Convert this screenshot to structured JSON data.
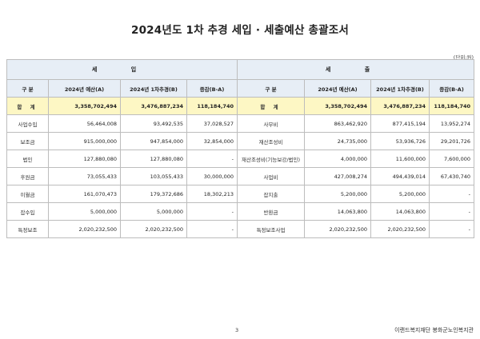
{
  "title": "2024년도 1차 추경 세입 · 세출예산 총괄조서",
  "unit": "(단위:원)",
  "revenue_header": "세 입",
  "expense_header": "세 출",
  "columns": {
    "category": "구 분",
    "budget_2024": "2024년 예산(A)",
    "supp_2024": "2024년 1차추경(B)",
    "change": "증감(B-A)"
  },
  "total": {
    "label": "합 계",
    "rev_budget": "3,358,702,494",
    "rev_supp": "3,476,887,234",
    "rev_change": "118,184,740",
    "exp_budget": "3,358,702,494",
    "exp_supp": "3,476,887,234",
    "exp_change": "118,184,740"
  },
  "rows": [
    {
      "rev_label": "사업수입",
      "rev_budget": "56,464,008",
      "rev_supp": "93,492,535",
      "rev_change": "37,028,527",
      "exp_label": "사무비",
      "exp_budget": "863,462,920",
      "exp_supp": "877,415,194",
      "exp_change": "13,952,274"
    },
    {
      "rev_label": "보조금",
      "rev_budget": "915,000,000",
      "rev_supp": "947,854,000",
      "rev_change": "32,854,000",
      "exp_label": "재산조성비",
      "exp_budget": "24,735,000",
      "exp_supp": "53,936,726",
      "exp_change": "29,201,726"
    },
    {
      "rev_label": "법인",
      "rev_budget": "127,880,080",
      "rev_supp": "127,880,080",
      "rev_change": "-",
      "exp_label": "재산조성비(기능보강/법인)",
      "exp_budget": "4,000,000",
      "exp_supp": "11,600,000",
      "exp_change": "7,600,000"
    },
    {
      "rev_label": "후원금",
      "rev_budget": "73,055,433",
      "rev_supp": "103,055,433",
      "rev_change": "30,000,000",
      "exp_label": "사업비",
      "exp_budget": "427,008,274",
      "exp_supp": "494,439,014",
      "exp_change": "67,430,740"
    },
    {
      "rev_label": "이월금",
      "rev_budget": "161,070,473",
      "rev_supp": "179,372,686",
      "rev_change": "18,302,213",
      "exp_label": "잡지출",
      "exp_budget": "5,200,000",
      "exp_supp": "5,200,000",
      "exp_change": "-"
    },
    {
      "rev_label": "잡수입",
      "rev_budget": "5,000,000",
      "rev_supp": "5,000,000",
      "rev_change": "-",
      "exp_label": "반환금",
      "exp_budget": "14,063,800",
      "exp_supp": "14,063,800",
      "exp_change": "-"
    },
    {
      "rev_label": "특정보조",
      "rev_budget": "2,020,232,500",
      "rev_supp": "2,020,232,500",
      "rev_change": "-",
      "exp_label": "특정보조사업",
      "exp_budget": "2,020,232,500",
      "exp_supp": "2,020,232,500",
      "exp_change": "-"
    }
  ],
  "page_number": "3",
  "footer_org": "이랜드복지재단 봉화군노인복지관"
}
